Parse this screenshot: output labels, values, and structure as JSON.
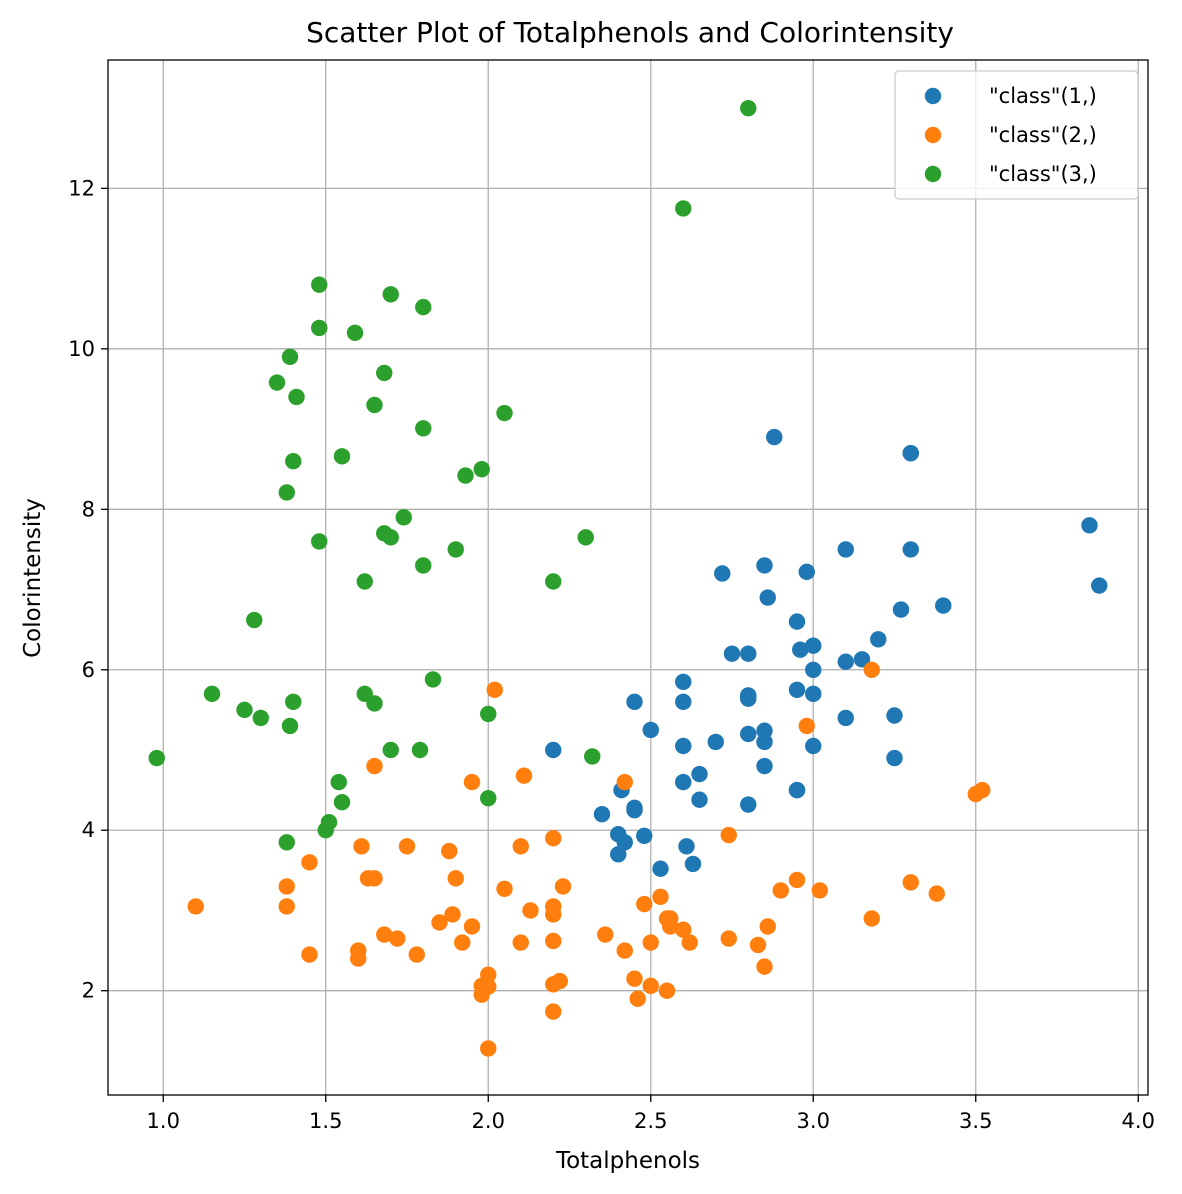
{
  "chart_data": {
    "type": "scatter",
    "title": "Scatter Plot of Totalphenols and Colorintensity",
    "xlabel": "Totalphenols",
    "ylabel": "Colorintensity",
    "xlim": [
      0.83,
      4.03
    ],
    "ylim": [
      0.7,
      13.6
    ],
    "x_ticks": [
      1.0,
      1.5,
      2.0,
      2.5,
      3.0,
      3.5,
      4.0
    ],
    "x_tick_labels": [
      "1.0",
      "1.5",
      "2.0",
      "2.5",
      "3.0",
      "3.5",
      "4.0"
    ],
    "y_ticks": [
      2,
      4,
      6,
      8,
      10,
      12
    ],
    "y_tick_labels": [
      "2",
      "4",
      "6",
      "8",
      "10",
      "12"
    ],
    "grid": true,
    "legend_position": "top-right",
    "series": [
      {
        "name": "\"class\"(1,)",
        "color": "#1f77b4",
        "points": [
          [
            2.8,
            5.64
          ],
          [
            2.65,
            4.38
          ],
          [
            2.8,
            5.68
          ],
          [
            3.85,
            7.8
          ],
          [
            2.8,
            4.32
          ],
          [
            3.27,
            6.75
          ],
          [
            2.5,
            5.25
          ],
          [
            2.6,
            5.05
          ],
          [
            2.8,
            5.2
          ],
          [
            2.98,
            7.22
          ],
          [
            2.95,
            5.75
          ],
          [
            2.2,
            5.0
          ],
          [
            2.6,
            5.6
          ],
          [
            3.1,
            7.5
          ],
          [
            3.3,
            8.7
          ],
          [
            2.85,
            5.1
          ],
          [
            2.8,
            5.65
          ],
          [
            2.95,
            4.5
          ],
          [
            3.3,
            7.5
          ],
          [
            2.7,
            5.1
          ],
          [
            3.0,
            5.7
          ],
          [
            2.41,
            4.5
          ],
          [
            2.61,
            3.8
          ],
          [
            2.48,
            3.93
          ],
          [
            2.53,
            3.52
          ],
          [
            2.63,
            3.58
          ],
          [
            2.85,
            4.8
          ],
          [
            2.4,
            3.95
          ],
          [
            2.95,
            4.5
          ],
          [
            3.0,
            5.05
          ],
          [
            2.42,
            3.85
          ],
          [
            2.6,
            4.6
          ],
          [
            2.72,
            7.2
          ],
          [
            2.45,
            4.25
          ],
          [
            3.88,
            7.05
          ],
          [
            2.45,
            4.28
          ],
          [
            2.4,
            3.7
          ],
          [
            2.35,
            4.2
          ],
          [
            2.65,
            4.7
          ],
          [
            2.86,
            6.9
          ],
          [
            2.88,
            8.9
          ],
          [
            2.75,
            6.2
          ],
          [
            2.96,
            6.25
          ],
          [
            3.0,
            6.3
          ],
          [
            3.15,
            6.13
          ],
          [
            3.2,
            6.38
          ],
          [
            3.25,
            5.43
          ],
          [
            3.3,
            8.7
          ],
          [
            3.4,
            6.8
          ],
          [
            3.1,
            6.1
          ],
          [
            2.95,
            6.6
          ],
          [
            2.85,
            7.3
          ],
          [
            3.0,
            6.0
          ],
          [
            2.45,
            5.6
          ],
          [
            2.6,
            5.85
          ],
          [
            2.8,
            6.2
          ],
          [
            2.85,
            5.24
          ],
          [
            3.1,
            5.4
          ],
          [
            3.25,
            4.9
          ]
        ]
      },
      {
        "name": "\"class\"(2,)",
        "color": "#ff7f0e",
        "points": [
          [
            1.1,
            3.05
          ],
          [
            1.38,
            3.3
          ],
          [
            1.38,
            3.05
          ],
          [
            1.45,
            2.45
          ],
          [
            1.45,
            3.6
          ],
          [
            1.6,
            2.5
          ],
          [
            1.6,
            2.4
          ],
          [
            1.61,
            3.8
          ],
          [
            1.63,
            3.4
          ],
          [
            1.65,
            3.4
          ],
          [
            1.65,
            4.8
          ],
          [
            1.68,
            2.7
          ],
          [
            1.72,
            2.65
          ],
          [
            1.75,
            3.8
          ],
          [
            1.78,
            2.45
          ],
          [
            1.85,
            2.85
          ],
          [
            1.88,
            3.74
          ],
          [
            1.89,
            2.95
          ],
          [
            1.9,
            3.4
          ],
          [
            1.92,
            2.6
          ],
          [
            1.95,
            2.8
          ],
          [
            1.95,
            4.6
          ],
          [
            1.98,
            1.95
          ],
          [
            2.0,
            2.2
          ],
          [
            2.0,
            2.05
          ],
          [
            2.0,
            1.28
          ],
          [
            2.02,
            5.75
          ],
          [
            2.05,
            3.27
          ],
          [
            2.1,
            2.6
          ],
          [
            2.1,
            3.8
          ],
          [
            2.11,
            4.68
          ],
          [
            2.13,
            3.0
          ],
          [
            2.2,
            3.05
          ],
          [
            2.2,
            2.95
          ],
          [
            2.2,
            2.62
          ],
          [
            2.2,
            2.08
          ],
          [
            2.2,
            1.74
          ],
          [
            2.2,
            3.9
          ],
          [
            2.22,
            2.12
          ],
          [
            2.23,
            3.3
          ],
          [
            2.36,
            2.7
          ],
          [
            2.42,
            2.5
          ],
          [
            2.42,
            4.6
          ],
          [
            2.45,
            2.15
          ],
          [
            2.46,
            1.9
          ],
          [
            2.48,
            3.08
          ],
          [
            2.5,
            2.6
          ],
          [
            2.5,
            2.06
          ],
          [
            2.53,
            3.17
          ],
          [
            2.55,
            2.0
          ],
          [
            2.55,
            2.9
          ],
          [
            2.56,
            2.8
          ],
          [
            2.6,
            2.76
          ],
          [
            2.62,
            2.6
          ],
          [
            2.74,
            2.65
          ],
          [
            2.74,
            3.94
          ],
          [
            2.83,
            2.57
          ],
          [
            2.85,
            2.3
          ],
          [
            2.86,
            2.8
          ],
          [
            2.9,
            3.25
          ],
          [
            2.95,
            3.38
          ],
          [
            2.98,
            5.3
          ],
          [
            3.02,
            3.25
          ],
          [
            3.18,
            6.0
          ],
          [
            3.18,
            2.9
          ],
          [
            3.3,
            3.35
          ],
          [
            3.38,
            3.21
          ],
          [
            3.5,
            4.45
          ],
          [
            3.52,
            4.5
          ],
          [
            2.56,
            2.9
          ],
          [
            1.98,
            2.06
          ]
        ]
      },
      {
        "name": "\"class\"(3,)",
        "color": "#2ca02c",
        "points": [
          [
            0.98,
            4.9
          ],
          [
            1.15,
            5.7
          ],
          [
            1.25,
            5.5
          ],
          [
            1.28,
            6.62
          ],
          [
            1.3,
            5.4
          ],
          [
            1.35,
            9.58
          ],
          [
            1.38,
            8.21
          ],
          [
            1.38,
            3.85
          ],
          [
            1.39,
            5.3
          ],
          [
            1.39,
            9.9
          ],
          [
            1.4,
            8.6
          ],
          [
            1.4,
            5.6
          ],
          [
            1.41,
            9.4
          ],
          [
            1.48,
            10.8
          ],
          [
            1.48,
            10.26
          ],
          [
            1.48,
            7.6
          ],
          [
            1.5,
            4.0
          ],
          [
            1.51,
            4.1
          ],
          [
            1.54,
            4.6
          ],
          [
            1.55,
            4.35
          ],
          [
            1.55,
            8.66
          ],
          [
            1.59,
            10.2
          ],
          [
            1.62,
            7.1
          ],
          [
            1.62,
            5.7
          ],
          [
            1.65,
            9.3
          ],
          [
            1.65,
            5.58
          ],
          [
            1.68,
            9.7
          ],
          [
            1.68,
            7.7
          ],
          [
            1.7,
            10.68
          ],
          [
            1.7,
            7.65
          ],
          [
            1.7,
            5.0
          ],
          [
            1.74,
            7.9
          ],
          [
            1.79,
            5.0
          ],
          [
            1.8,
            10.52
          ],
          [
            1.8,
            9.01
          ],
          [
            1.8,
            7.3
          ],
          [
            1.83,
            5.88
          ],
          [
            1.9,
            7.5
          ],
          [
            1.93,
            8.42
          ],
          [
            1.98,
            8.5
          ],
          [
            2.0,
            5.45
          ],
          [
            2.0,
            4.4
          ],
          [
            2.05,
            9.2
          ],
          [
            2.2,
            7.1
          ],
          [
            2.3,
            7.65
          ],
          [
            2.32,
            4.92
          ],
          [
            2.6,
            11.75
          ],
          [
            2.8,
            13.0
          ]
        ]
      }
    ]
  }
}
